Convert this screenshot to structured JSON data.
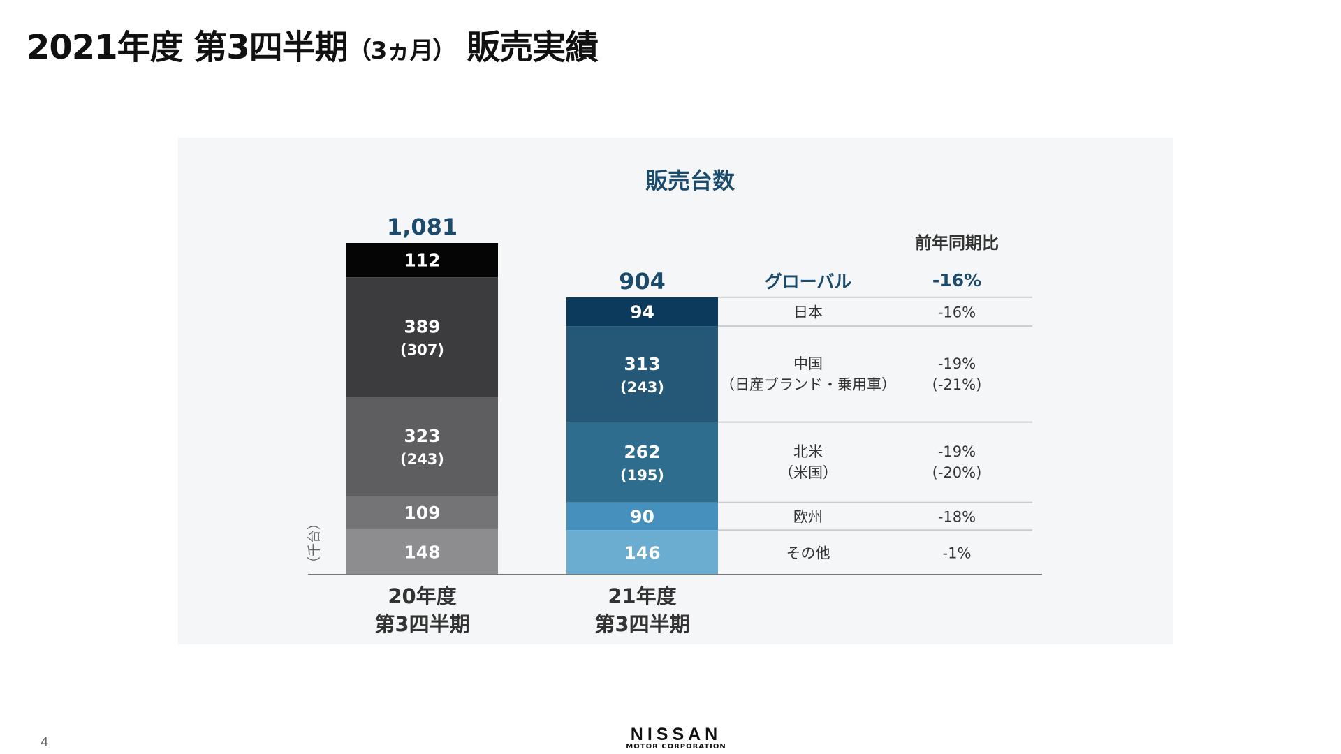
{
  "title": {
    "main": "2021年度 第3四半期",
    "paren": "（3ヵ月）",
    "suffix": " 販売実績"
  },
  "page_number": "4",
  "logo": {
    "name": "NISSAN",
    "sub": "MOTOR CORPORATION"
  },
  "chart_data": {
    "type": "bar",
    "stacked": true,
    "title": "販売台数",
    "unit_label": "（千台）",
    "categories": [
      "20年度\n第3四半期",
      "21年度\n第3四半期"
    ],
    "totals": [
      "1,081",
      "904"
    ],
    "total_values": [
      1081,
      904
    ],
    "segments": [
      {
        "region": "日本",
        "values": [
          112,
          94
        ],
        "labels": [
          "112",
          "94"
        ],
        "sub_labels": [
          "",
          ""
        ],
        "yoy": "-16%",
        "yoy_sub": "",
        "colors": [
          "#050505",
          "#0b3a5c"
        ]
      },
      {
        "region": "中国",
        "region_sub": "（日産ブランド・乗用車）",
        "values": [
          389,
          313
        ],
        "labels": [
          "389",
          "313"
        ],
        "sub_labels": [
          "(307)",
          "(243)"
        ],
        "yoy": "-19%",
        "yoy_sub": "(-21%)",
        "colors": [
          "#3c3b3e",
          "#245876"
        ]
      },
      {
        "region": "北米",
        "region_sub": "（米国）",
        "values": [
          323,
          262
        ],
        "labels": [
          "323",
          "262"
        ],
        "sub_labels": [
          "(243)",
          "(195)"
        ],
        "yoy": "-19%",
        "yoy_sub": "(-20%)",
        "colors": [
          "#5e5d60",
          "#2f6d8e"
        ]
      },
      {
        "region": "欧州",
        "values": [
          109,
          90
        ],
        "labels": [
          "109",
          "90"
        ],
        "sub_labels": [
          "",
          ""
        ],
        "yoy": "-18%",
        "yoy_sub": "",
        "colors": [
          "#747376",
          "#4690bd"
        ]
      },
      {
        "region": "その他",
        "values": [
          148,
          146
        ],
        "labels": [
          "148",
          "146"
        ],
        "sub_labels": [
          "",
          ""
        ],
        "yoy": "-1%",
        "yoy_sub": "",
        "colors": [
          "#8d8c8f",
          "#6aadd0"
        ]
      }
    ],
    "yoy_header": "前年同期比",
    "global_label": "グローバル",
    "global_yoy": "-16%",
    "accent_color": "#1b4a6b"
  }
}
